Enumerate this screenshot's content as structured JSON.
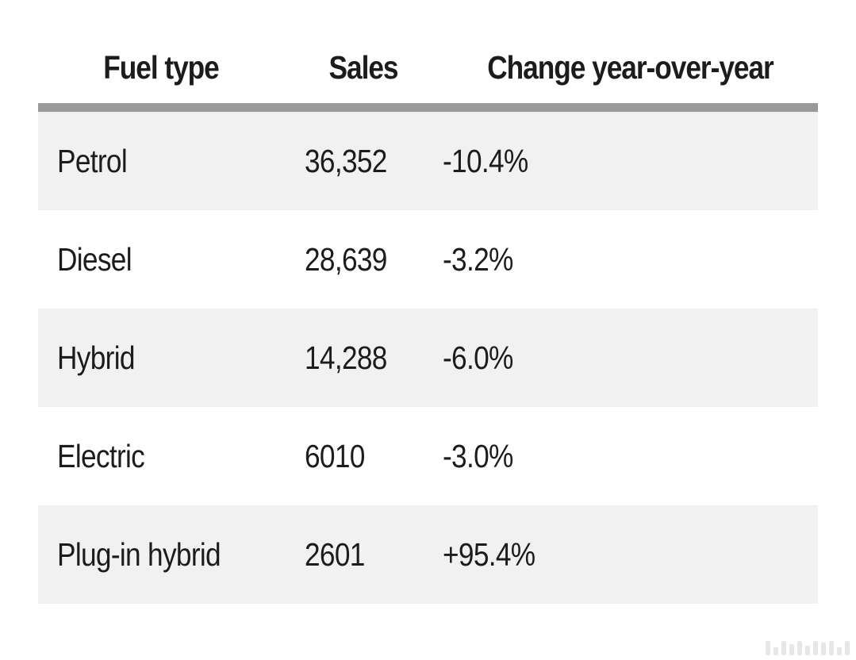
{
  "table": {
    "headers": [
      "Fuel type",
      "Sales",
      "Change year-over-year"
    ],
    "rows": [
      {
        "fuel_type": "Petrol",
        "sales": "36,352",
        "change": "-10.4%"
      },
      {
        "fuel_type": "Diesel",
        "sales": "28,639",
        "change": "-3.2%"
      },
      {
        "fuel_type": "Hybrid",
        "sales": "14,288",
        "change": "-6.0%"
      },
      {
        "fuel_type": "Electric",
        "sales": "6010",
        "change": "-3.0%"
      },
      {
        "fuel_type": "Plug-in hybrid",
        "sales": "2601",
        "change": "+95.4%"
      }
    ]
  },
  "colors": {
    "header_rule": "#9a9a9a",
    "row_shade": "#f1f1f1",
    "text": "#1c1c1c"
  }
}
